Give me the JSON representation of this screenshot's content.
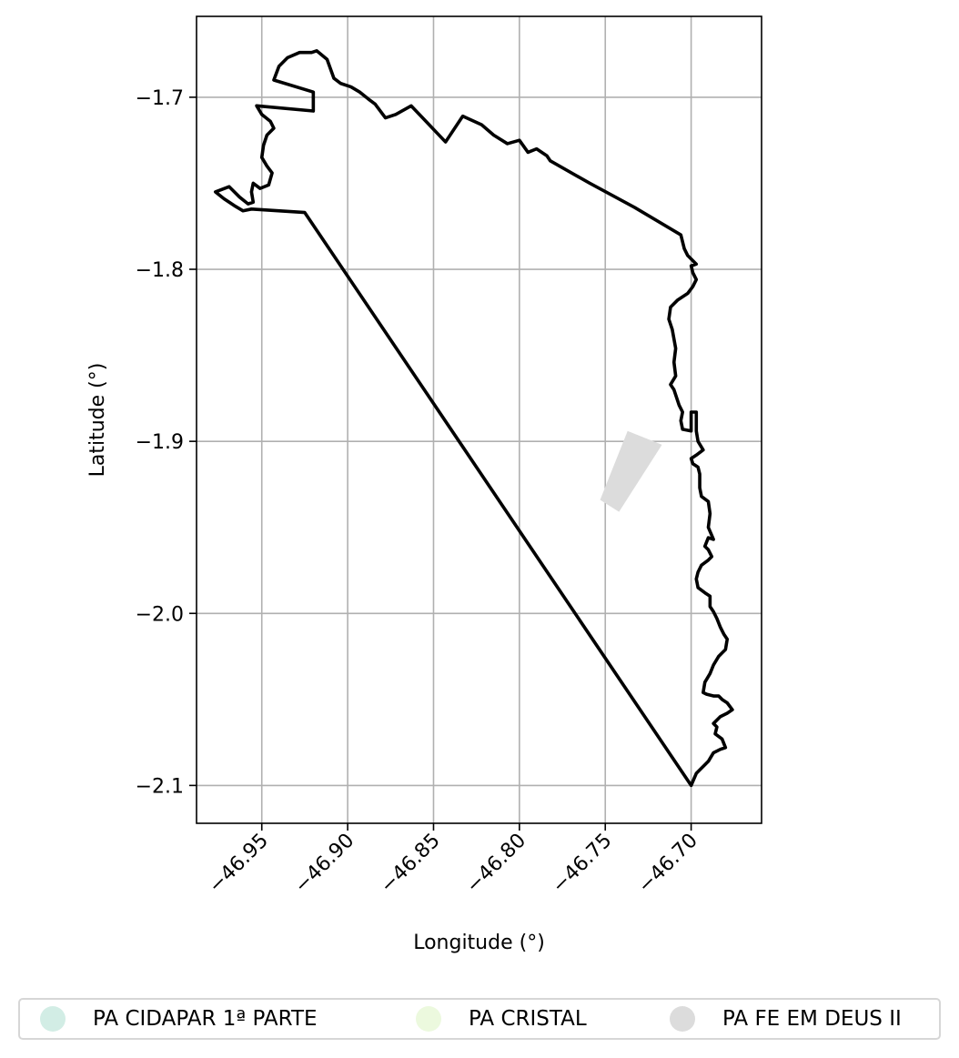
{
  "chart_data": {
    "type": "map",
    "xlabel": "Longitude (°)",
    "ylabel": "Latitude (°)",
    "xlim": [
      -46.988,
      -46.659
    ],
    "ylim": [
      -2.122,
      -1.653
    ],
    "grid": true,
    "xticks": [
      {
        "value": -46.95,
        "label": "−46.95"
      },
      {
        "value": -46.9,
        "label": "−46.90"
      },
      {
        "value": -46.85,
        "label": "−46.85"
      },
      {
        "value": -46.8,
        "label": "−46.80"
      },
      {
        "value": -46.75,
        "label": "−46.75"
      },
      {
        "value": -46.7,
        "label": "−46.70"
      }
    ],
    "yticks": [
      {
        "value": -1.7,
        "label": "−1.7"
      },
      {
        "value": -1.8,
        "label": "−1.8"
      },
      {
        "value": -1.9,
        "label": "−1.9"
      },
      {
        "value": -2.0,
        "label": "−2.0"
      },
      {
        "value": -2.1,
        "label": "−2.1"
      }
    ],
    "boundary": {
      "color": "#000000",
      "points": [
        [
          -46.925,
          -1.767
        ],
        [
          -46.7,
          -2.1
        ],
        [
          -46.697,
          -2.093
        ],
        [
          -46.69,
          -2.086
        ],
        [
          -46.687,
          -2.081
        ],
        [
          -46.683,
          -2.079
        ],
        [
          -46.68,
          -2.078
        ],
        [
          -46.682,
          -2.073
        ],
        [
          -46.686,
          -2.07
        ],
        [
          -46.685,
          -2.066
        ],
        [
          -46.687,
          -2.064
        ],
        [
          -46.683,
          -2.06
        ],
        [
          -46.679,
          -2.058
        ],
        [
          -46.676,
          -2.056
        ],
        [
          -46.679,
          -2.052
        ],
        [
          -46.682,
          -2.05
        ],
        [
          -46.684,
          -2.048
        ],
        [
          -46.687,
          -2.048
        ],
        [
          -46.691,
          -2.047
        ],
        [
          -46.693,
          -2.046
        ],
        [
          -46.692,
          -2.04
        ],
        [
          -46.689,
          -2.035
        ],
        [
          -46.687,
          -2.03
        ],
        [
          -46.684,
          -2.025
        ],
        [
          -46.682,
          -2.023
        ],
        [
          -46.68,
          -2.021
        ],
        [
          -46.679,
          -2.015
        ],
        [
          -46.681,
          -2.012
        ],
        [
          -46.683,
          -2.008
        ],
        [
          -46.685,
          -2.003
        ],
        [
          -46.687,
          -1.999
        ],
        [
          -46.689,
          -1.996
        ],
        [
          -46.689,
          -1.99
        ],
        [
          -46.692,
          -1.988
        ],
        [
          -46.696,
          -1.985
        ],
        [
          -46.697,
          -1.98
        ],
        [
          -46.696,
          -1.976
        ],
        [
          -46.694,
          -1.972
        ],
        [
          -46.69,
          -1.969
        ],
        [
          -46.688,
          -1.967
        ],
        [
          -46.69,
          -1.963
        ],
        [
          -46.692,
          -1.961
        ],
        [
          -46.69,
          -1.956
        ],
        [
          -46.687,
          -1.957
        ],
        [
          -46.69,
          -1.95
        ],
        [
          -46.689,
          -1.942
        ],
        [
          -46.69,
          -1.935
        ],
        [
          -46.694,
          -1.932
        ],
        [
          -46.695,
          -1.927
        ],
        [
          -46.695,
          -1.919
        ],
        [
          -46.696,
          -1.915
        ],
        [
          -46.699,
          -1.913
        ],
        [
          -46.7,
          -1.91
        ],
        [
          -46.697,
          -1.908
        ],
        [
          -46.693,
          -1.905
        ],
        [
          -46.696,
          -1.9
        ],
        [
          -46.697,
          -1.894
        ],
        [
          -46.697,
          -1.883
        ],
        [
          -46.7,
          -1.883
        ],
        [
          -46.7,
          -1.894
        ],
        [
          -46.705,
          -1.893
        ],
        [
          -46.706,
          -1.888
        ],
        [
          -46.705,
          -1.883
        ],
        [
          -46.707,
          -1.879
        ],
        [
          -46.71,
          -1.87
        ],
        [
          -46.712,
          -1.867
        ],
        [
          -46.709,
          -1.862
        ],
        [
          -46.71,
          -1.854
        ],
        [
          -46.709,
          -1.846
        ],
        [
          -46.711,
          -1.835
        ],
        [
          -46.713,
          -1.829
        ],
        [
          -46.712,
          -1.822
        ],
        [
          -46.708,
          -1.818
        ],
        [
          -46.702,
          -1.814
        ],
        [
          -46.699,
          -1.81
        ],
        [
          -46.697,
          -1.806
        ],
        [
          -46.699,
          -1.802
        ],
        [
          -46.7,
          -1.798
        ],
        [
          -46.697,
          -1.797
        ],
        [
          -46.702,
          -1.792
        ],
        [
          -46.704,
          -1.788
        ],
        [
          -46.706,
          -1.78
        ],
        [
          -46.733,
          -1.764
        ],
        [
          -46.759,
          -1.75
        ],
        [
          -46.782,
          -1.737
        ],
        [
          -46.784,
          -1.734
        ],
        [
          -46.79,
          -1.73
        ],
        [
          -46.795,
          -1.732
        ],
        [
          -46.8,
          -1.725
        ],
        [
          -46.807,
          -1.727
        ],
        [
          -46.815,
          -1.722
        ],
        [
          -46.822,
          -1.716
        ],
        [
          -46.833,
          -1.711
        ],
        [
          -46.843,
          -1.726
        ],
        [
          -46.863,
          -1.705
        ],
        [
          -46.872,
          -1.71
        ],
        [
          -46.878,
          -1.712
        ],
        [
          -46.884,
          -1.704
        ],
        [
          -46.888,
          -1.701
        ],
        [
          -46.893,
          -1.697
        ],
        [
          -46.898,
          -1.694
        ],
        [
          -46.904,
          -1.692
        ],
        [
          -46.908,
          -1.689
        ],
        [
          -46.912,
          -1.678
        ],
        [
          -46.918,
          -1.673
        ],
        [
          -46.921,
          -1.674
        ],
        [
          -46.928,
          -1.674
        ],
        [
          -46.935,
          -1.677
        ],
        [
          -46.94,
          -1.682
        ],
        [
          -46.943,
          -1.69
        ],
        [
          -46.92,
          -1.697
        ],
        [
          -46.92,
          -1.708
        ],
        [
          -46.953,
          -1.705
        ],
        [
          -46.95,
          -1.71
        ],
        [
          -46.945,
          -1.714
        ],
        [
          -46.943,
          -1.718
        ],
        [
          -46.947,
          -1.722
        ],
        [
          -46.949,
          -1.728
        ],
        [
          -46.95,
          -1.735
        ],
        [
          -46.947,
          -1.74
        ],
        [
          -46.944,
          -1.744
        ],
        [
          -46.946,
          -1.751
        ],
        [
          -46.951,
          -1.753
        ],
        [
          -46.955,
          -1.75
        ],
        [
          -46.956,
          -1.755
        ],
        [
          -46.955,
          -1.761
        ],
        [
          -46.958,
          -1.762
        ],
        [
          -46.963,
          -1.758
        ],
        [
          -46.969,
          -1.752
        ],
        [
          -46.977,
          -1.755
        ],
        [
          -46.972,
          -1.759
        ],
        [
          -46.966,
          -1.763
        ],
        [
          -46.961,
          -1.766
        ],
        [
          -46.956,
          -1.765
        ],
        [
          -46.925,
          -1.767
        ]
      ]
    },
    "parcels": [
      {
        "name": "PA FE EM DEUS II",
        "color": "#dcdcdc",
        "points": [
          [
            -46.737,
            -1.894
          ],
          [
            -46.717,
            -1.902
          ],
          [
            -46.742,
            -1.941
          ],
          [
            -46.753,
            -1.934
          ]
        ]
      }
    ],
    "legend": {
      "placement": "bottom",
      "entries": [
        {
          "label": "PA CIDAPAR 1ª PARTE",
          "color": "#d2ede5"
        },
        {
          "label": "PA CRISTAL",
          "color": "#ecf9de"
        },
        {
          "label": "PA FE EM DEUS II",
          "color": "#dcdcdc"
        }
      ]
    }
  }
}
